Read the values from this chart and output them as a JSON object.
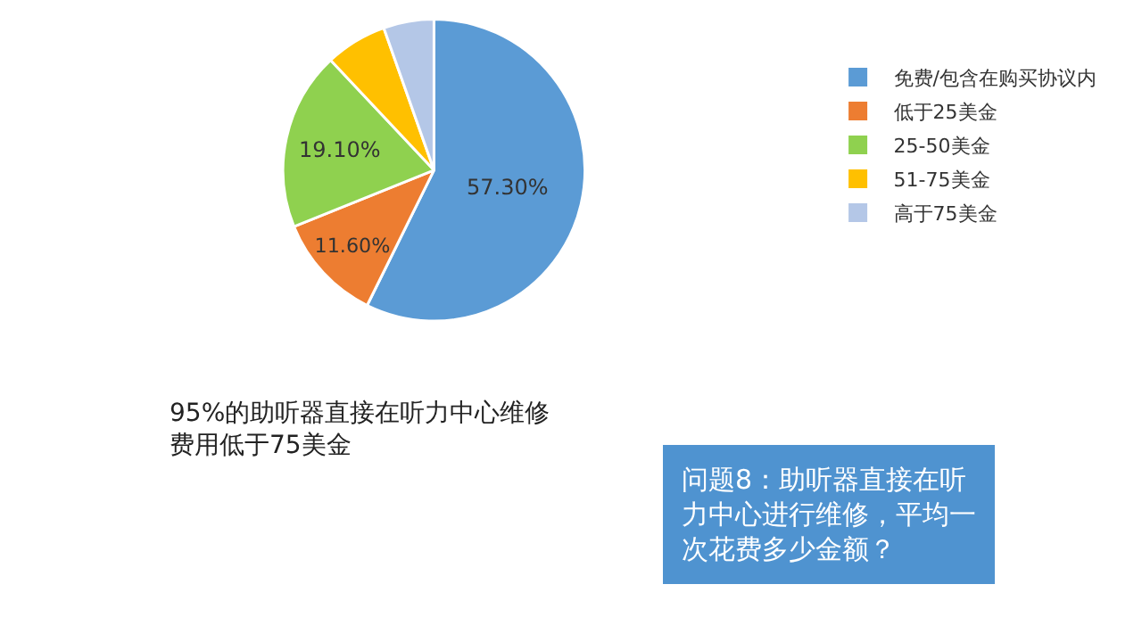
{
  "chart_data": {
    "type": "pie",
    "categories": [
      "免费/包含在购买协议内",
      "低于25美金",
      "25-50美金",
      "51-75美金",
      "高于75美金"
    ],
    "values": [
      57.3,
      11.6,
      19.1,
      6.6,
      5.4
    ],
    "colors": [
      "#5b9bd5",
      "#ed7d31",
      "#8fd14f",
      "#ffc000",
      "#b4c7e7"
    ],
    "value_labels": [
      "57.30%",
      "11.60%",
      "19.10%",
      null,
      null
    ],
    "legend": "right",
    "annotations": [
      "95%的助听器直接在听力中心维修费用低于75美金",
      "问题8：助听器直接在听力中心进行维修，平均一次花费多少金额？"
    ]
  }
}
